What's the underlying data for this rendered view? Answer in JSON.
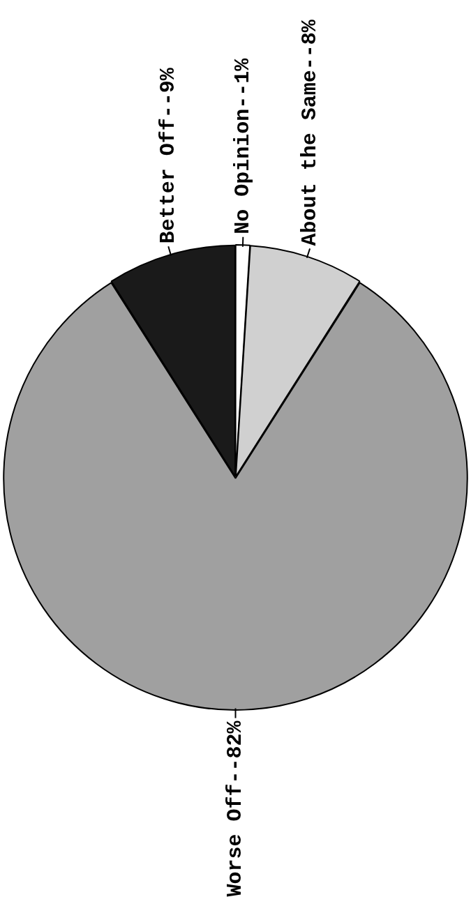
{
  "chart_data": {
    "type": "pie",
    "categories": [
      "Better Off--9%",
      "No Opinion--1%",
      "About the Same--8%",
      "Worse Off--82%"
    ],
    "values": [
      9,
      1,
      8,
      82
    ],
    "colors": [
      "#1a1a1a",
      "#ffffff",
      "#d0d0d0",
      "#a0a0a0"
    ]
  }
}
